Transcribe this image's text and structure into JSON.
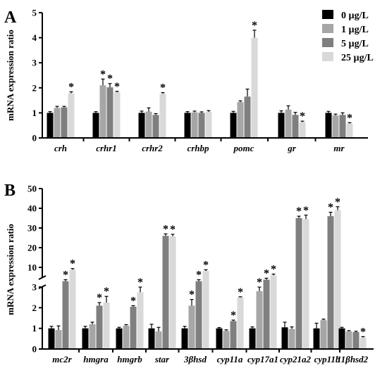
{
  "legend": {
    "position": "top-right",
    "entries": [
      {
        "label": "0 µg/L",
        "color": "#000000"
      },
      {
        "label": "1 µg/L",
        "color": "#a6a6a6"
      },
      {
        "label": "5 µg/L",
        "color": "#7f7f7f"
      },
      {
        "label": "25 µg/L",
        "color": "#d9d9d9"
      }
    ]
  },
  "chart_data": [
    {
      "panel": "A",
      "type": "bar",
      "ylabel": "mRNA expression ratio",
      "ylim": [
        0,
        5
      ],
      "yticks": [
        0,
        1,
        2,
        3,
        4,
        5
      ],
      "categories": [
        "crh",
        "crhr1",
        "crhr2",
        "crhbp",
        "pomc",
        "gr",
        "mr"
      ],
      "series": [
        {
          "name": "0 µg/L",
          "values": [
            1.0,
            1.0,
            1.0,
            1.0,
            1.0,
            1.0,
            1.0
          ],
          "errors": [
            0.05,
            0.05,
            0.07,
            0.05,
            0.06,
            0.08,
            0.06
          ]
        },
        {
          "name": "1 µg/L",
          "values": [
            1.2,
            2.1,
            1.05,
            1.02,
            1.43,
            1.13,
            0.9
          ],
          "errors": [
            0.06,
            0.25,
            0.15,
            0.05,
            0.05,
            0.15,
            0.05
          ]
        },
        {
          "name": "5 µg/L",
          "values": [
            1.22,
            2.02,
            0.92,
            1.0,
            1.65,
            0.92,
            0.92
          ],
          "errors": [
            0.04,
            0.15,
            0.05,
            0.04,
            0.3,
            0.1,
            0.08
          ]
        },
        {
          "name": "25 µg/L",
          "values": [
            1.78,
            1.82,
            1.76,
            1.04,
            4.0,
            0.63,
            0.57
          ],
          "errors": [
            0.06,
            0.04,
            0.05,
            0.05,
            0.3,
            0.04,
            0.04
          ]
        }
      ],
      "significance": [
        [
          false,
          false,
          false,
          true
        ],
        [
          false,
          true,
          true,
          true
        ],
        [
          false,
          false,
          false,
          true
        ],
        [
          false,
          false,
          false,
          false
        ],
        [
          false,
          false,
          false,
          true
        ],
        [
          false,
          false,
          false,
          true
        ],
        [
          false,
          false,
          false,
          true
        ]
      ]
    },
    {
      "panel": "B",
      "type": "bar",
      "ylabel": "mRNA expression ratio",
      "axis_break": true,
      "ylim_lower": [
        0,
        3
      ],
      "ylim_upper": [
        5,
        50
      ],
      "yticks_lower": [
        0,
        1,
        2,
        3
      ],
      "yticks_upper": [
        10,
        20,
        30,
        40,
        50
      ],
      "categories": [
        "mc2r",
        "hmgra",
        "hmgrb",
        "star",
        "3βhsd",
        "cyp11a",
        "cyp17a1",
        "cyp21a2",
        "cyp11b",
        "11βhsd2"
      ],
      "series": [
        {
          "name": "0 µg/L",
          "values": [
            1.0,
            1.0,
            1.0,
            1.0,
            1.0,
            1.0,
            1.0,
            1.05,
            1.0,
            1.0
          ],
          "errors": [
            0.1,
            0.1,
            0.05,
            0.2,
            0.1,
            0.04,
            0.07,
            0.25,
            0.25,
            0.05
          ]
        },
        {
          "name": "1 µg/L",
          "values": [
            0.92,
            1.2,
            1.13,
            0.85,
            2.1,
            0.88,
            2.8,
            0.97,
            1.4,
            0.85
          ],
          "errors": [
            0.2,
            0.1,
            0.05,
            0.2,
            0.3,
            0.05,
            0.2,
            0.1,
            0.05,
            0.04
          ]
        },
        {
          "name": "5 µg/L",
          "values": [
            4.2,
            2.1,
            2.05,
            26.0,
            4.2,
            1.35,
            4.5,
            35.0,
            36.0,
            0.82
          ],
          "errors": [
            0.3,
            0.15,
            0.05,
            1.0,
            0.3,
            0.05,
            0.3,
            1.0,
            2.0,
            0.04
          ]
        },
        {
          "name": "25 µg/L",
          "values": [
            8.8,
            2.25,
            2.75,
            25.8,
            8.2,
            2.5,
            6.0,
            34.5,
            39.0,
            0.55
          ],
          "errors": [
            0.6,
            0.3,
            0.25,
            1.0,
            0.6,
            0.03,
            0.6,
            2.0,
            1.8,
            0.05
          ]
        }
      ],
      "significance": [
        [
          false,
          false,
          true,
          true
        ],
        [
          false,
          false,
          true,
          true
        ],
        [
          false,
          false,
          true,
          true
        ],
        [
          false,
          false,
          true,
          true
        ],
        [
          false,
          true,
          true,
          true
        ],
        [
          false,
          false,
          true,
          true
        ],
        [
          false,
          true,
          true,
          true
        ],
        [
          false,
          false,
          true,
          true
        ],
        [
          false,
          false,
          true,
          true
        ],
        [
          false,
          false,
          false,
          true
        ]
      ]
    }
  ]
}
